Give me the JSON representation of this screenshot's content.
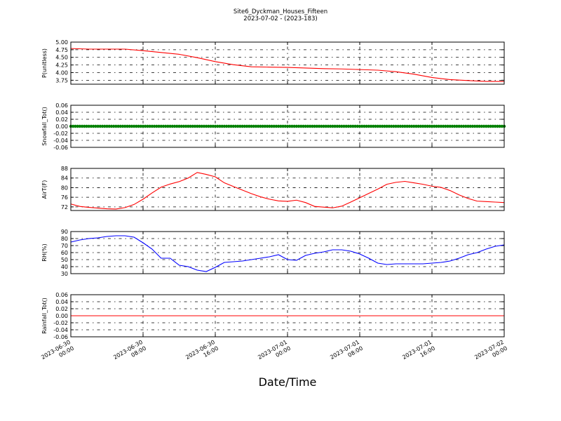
{
  "title": "Site6_Dyckman_Houses_Fifteen",
  "subtitle": "2023-07-02 - (2023-183)",
  "xlabel": "Date/Time",
  "x_ticks": [
    {
      "t": 0,
      "line1": "2023-06-30",
      "line2": "00:00"
    },
    {
      "t": 8,
      "line1": "2023-06-30",
      "line2": "08:00"
    },
    {
      "t": 16,
      "line1": "2023-06-30",
      "line2": "16:00"
    },
    {
      "t": 24,
      "line1": "2023-07-01",
      "line2": "00:00"
    },
    {
      "t": 32,
      "line1": "2023-07-01",
      "line2": "08:00"
    },
    {
      "t": 40,
      "line1": "2023-07-01",
      "line2": "16:00"
    },
    {
      "t": 48,
      "line1": "2023-07-02",
      "line2": "00:00"
    }
  ],
  "chart_data": [
    {
      "type": "line",
      "ylabel": "P(unitless)",
      "ylim": [
        3.62,
        5.0
      ],
      "yticks": [
        "5.00",
        "4.75",
        "4.50",
        "4.25",
        "4.00",
        "3.75"
      ],
      "ytick_values": [
        5.0,
        4.75,
        4.5,
        4.25,
        4.0,
        3.75
      ],
      "color": "#ff0000",
      "grid": true,
      "x": [
        0,
        2,
        4,
        6,
        8,
        10,
        12,
        14,
        16,
        18,
        20,
        22,
        24,
        26,
        28,
        30,
        32,
        34,
        36,
        38,
        40,
        42,
        44,
        46,
        48
      ],
      "y": [
        4.79,
        4.77,
        4.77,
        4.77,
        4.72,
        4.66,
        4.6,
        4.49,
        4.36,
        4.26,
        4.19,
        4.18,
        4.17,
        4.15,
        4.13,
        4.12,
        4.1,
        4.08,
        4.03,
        3.95,
        3.84,
        3.77,
        3.74,
        3.71,
        3.71
      ]
    },
    {
      "type": "line",
      "ylabel": "Snowfall_Tot()",
      "ylim": [
        -0.06,
        0.06
      ],
      "yticks": [
        "0.06",
        "0.04",
        "0.02",
        "0.00",
        "-0.02",
        "-0.04",
        "-0.06"
      ],
      "ytick_values": [
        0.06,
        0.04,
        0.02,
        0.0,
        -0.02,
        -0.04,
        -0.06
      ],
      "color": "#008000",
      "markers": true,
      "grid": true,
      "x": [
        0,
        48
      ],
      "y": [
        0,
        0
      ]
    },
    {
      "type": "line",
      "ylabel": "AirT(F)",
      "ylim": [
        70.5,
        88
      ],
      "yticks": [
        "88",
        "84",
        "80",
        "76",
        "72"
      ],
      "ytick_values": [
        88,
        84,
        80,
        76,
        72
      ],
      "color": "#ff0000",
      "grid": true,
      "x": [
        0,
        1,
        2,
        3,
        4,
        5,
        6,
        7,
        8,
        9,
        10,
        11,
        12,
        13,
        14,
        15,
        16,
        17,
        18,
        19,
        20,
        21,
        22,
        23,
        24,
        25,
        26,
        27,
        28,
        29,
        30,
        31,
        32,
        33,
        34,
        35,
        36,
        37,
        38,
        39,
        40,
        41,
        42,
        43,
        44,
        45,
        46,
        47,
        48
      ],
      "y": [
        73.2,
        72.2,
        71.8,
        71.5,
        71.2,
        71.1,
        71.7,
        73.0,
        75.2,
        77.8,
        80.2,
        81.5,
        82.5,
        84.0,
        86.3,
        85.5,
        84.5,
        82.0,
        80.5,
        79.0,
        77.5,
        76.2,
        75.2,
        74.5,
        74.3,
        74.8,
        73.8,
        72.2,
        71.9,
        71.6,
        72.3,
        74.0,
        75.8,
        77.6,
        79.4,
        81.4,
        82.2,
        82.6,
        82.0,
        81.4,
        80.6,
        80.1,
        78.8,
        77.0,
        75.5,
        74.4,
        74.2,
        74.0,
        73.8
      ]
    },
    {
      "type": "line",
      "ylabel": "RH(%)",
      "ylim": [
        30,
        90
      ],
      "yticks": [
        "90",
        "80",
        "70",
        "60",
        "50",
        "40",
        "30"
      ],
      "ytick_values": [
        90,
        80,
        70,
        60,
        50,
        40,
        30
      ],
      "color": "#0000ff",
      "grid": true,
      "x": [
        0,
        1,
        2,
        3,
        4,
        5,
        6,
        7,
        8,
        9,
        10,
        11,
        12,
        13,
        14,
        15,
        16,
        17,
        18,
        19,
        20,
        21,
        22,
        23,
        24,
        25,
        26,
        27,
        28,
        29,
        30,
        31,
        32,
        33,
        34,
        35,
        36,
        37,
        38,
        39,
        40,
        41,
        42,
        43,
        44,
        45,
        46,
        47,
        48
      ],
      "y": [
        75,
        78,
        80,
        81,
        83,
        84,
        84,
        82,
        74,
        65,
        52,
        52,
        42,
        40,
        35,
        33,
        39,
        46,
        47,
        48,
        50,
        52,
        54,
        57,
        50,
        49,
        56,
        59,
        61,
        64,
        64,
        62,
        58,
        52,
        45,
        43,
        44,
        44,
        44,
        44,
        45,
        46,
        48,
        52,
        57,
        60,
        65,
        69,
        71
      ]
    },
    {
      "type": "line",
      "ylabel": "Rainfall_Tot()",
      "ylim": [
        -0.06,
        0.06
      ],
      "yticks": [
        "0.06",
        "0.04",
        "0.02",
        "0.00",
        "-0.02",
        "-0.04",
        "-0.06"
      ],
      "ytick_values": [
        0.06,
        0.04,
        0.02,
        0.0,
        -0.02,
        -0.04,
        -0.06
      ],
      "color": "#ff0000",
      "grid": true,
      "x": [
        0,
        48
      ],
      "y": [
        0,
        0
      ]
    }
  ]
}
